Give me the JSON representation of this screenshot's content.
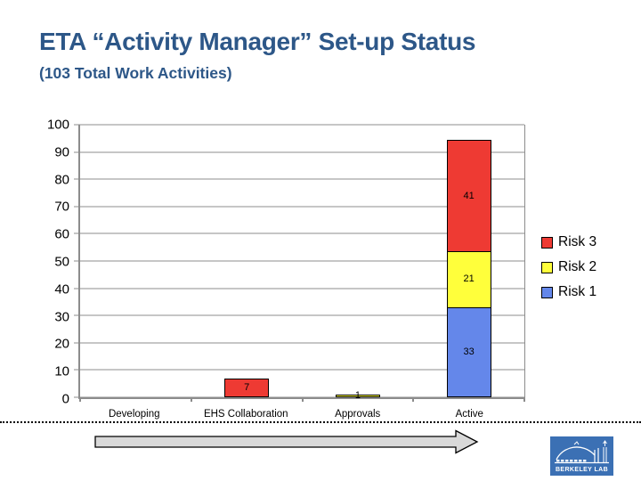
{
  "slide": {
    "title": "ETA “Activity Manager” Set-up Status",
    "subtitle": "(103 Total Work Activities)"
  },
  "chart_data": {
    "type": "bar",
    "stacked": true,
    "title": "",
    "xlabel": "",
    "ylabel": "",
    "categories": [
      "Developing",
      "EHS Collaboration",
      "Approvals",
      "Active"
    ],
    "series": [
      {
        "name": "Risk 1",
        "color": "#6487EA",
        "values": [
          0,
          0,
          0,
          33
        ]
      },
      {
        "name": "Risk 2",
        "color": "#FFFF3B",
        "values": [
          0,
          0,
          1,
          21
        ]
      },
      {
        "name": "Risk 3",
        "color": "#EE3A33",
        "values": [
          0,
          7,
          0,
          41
        ]
      }
    ],
    "ylim": [
      0,
      100
    ],
    "ytick_step": 10,
    "grid": true,
    "legend_position": "right",
    "legend_order": [
      "Risk 3",
      "Risk 2",
      "Risk 1"
    ],
    "axis_color": "#8C8C8C",
    "bar_border_color": "#000000",
    "category_total_sum": 103
  },
  "footer": {
    "logo_text": "BERKELEY LAB"
  },
  "colors": {
    "title_text": "#2D5788",
    "arrow_fill": "#D9D9D9",
    "arrow_outline": "#000000",
    "logo_background": "#3B70B4",
    "divider": "#000000"
  }
}
